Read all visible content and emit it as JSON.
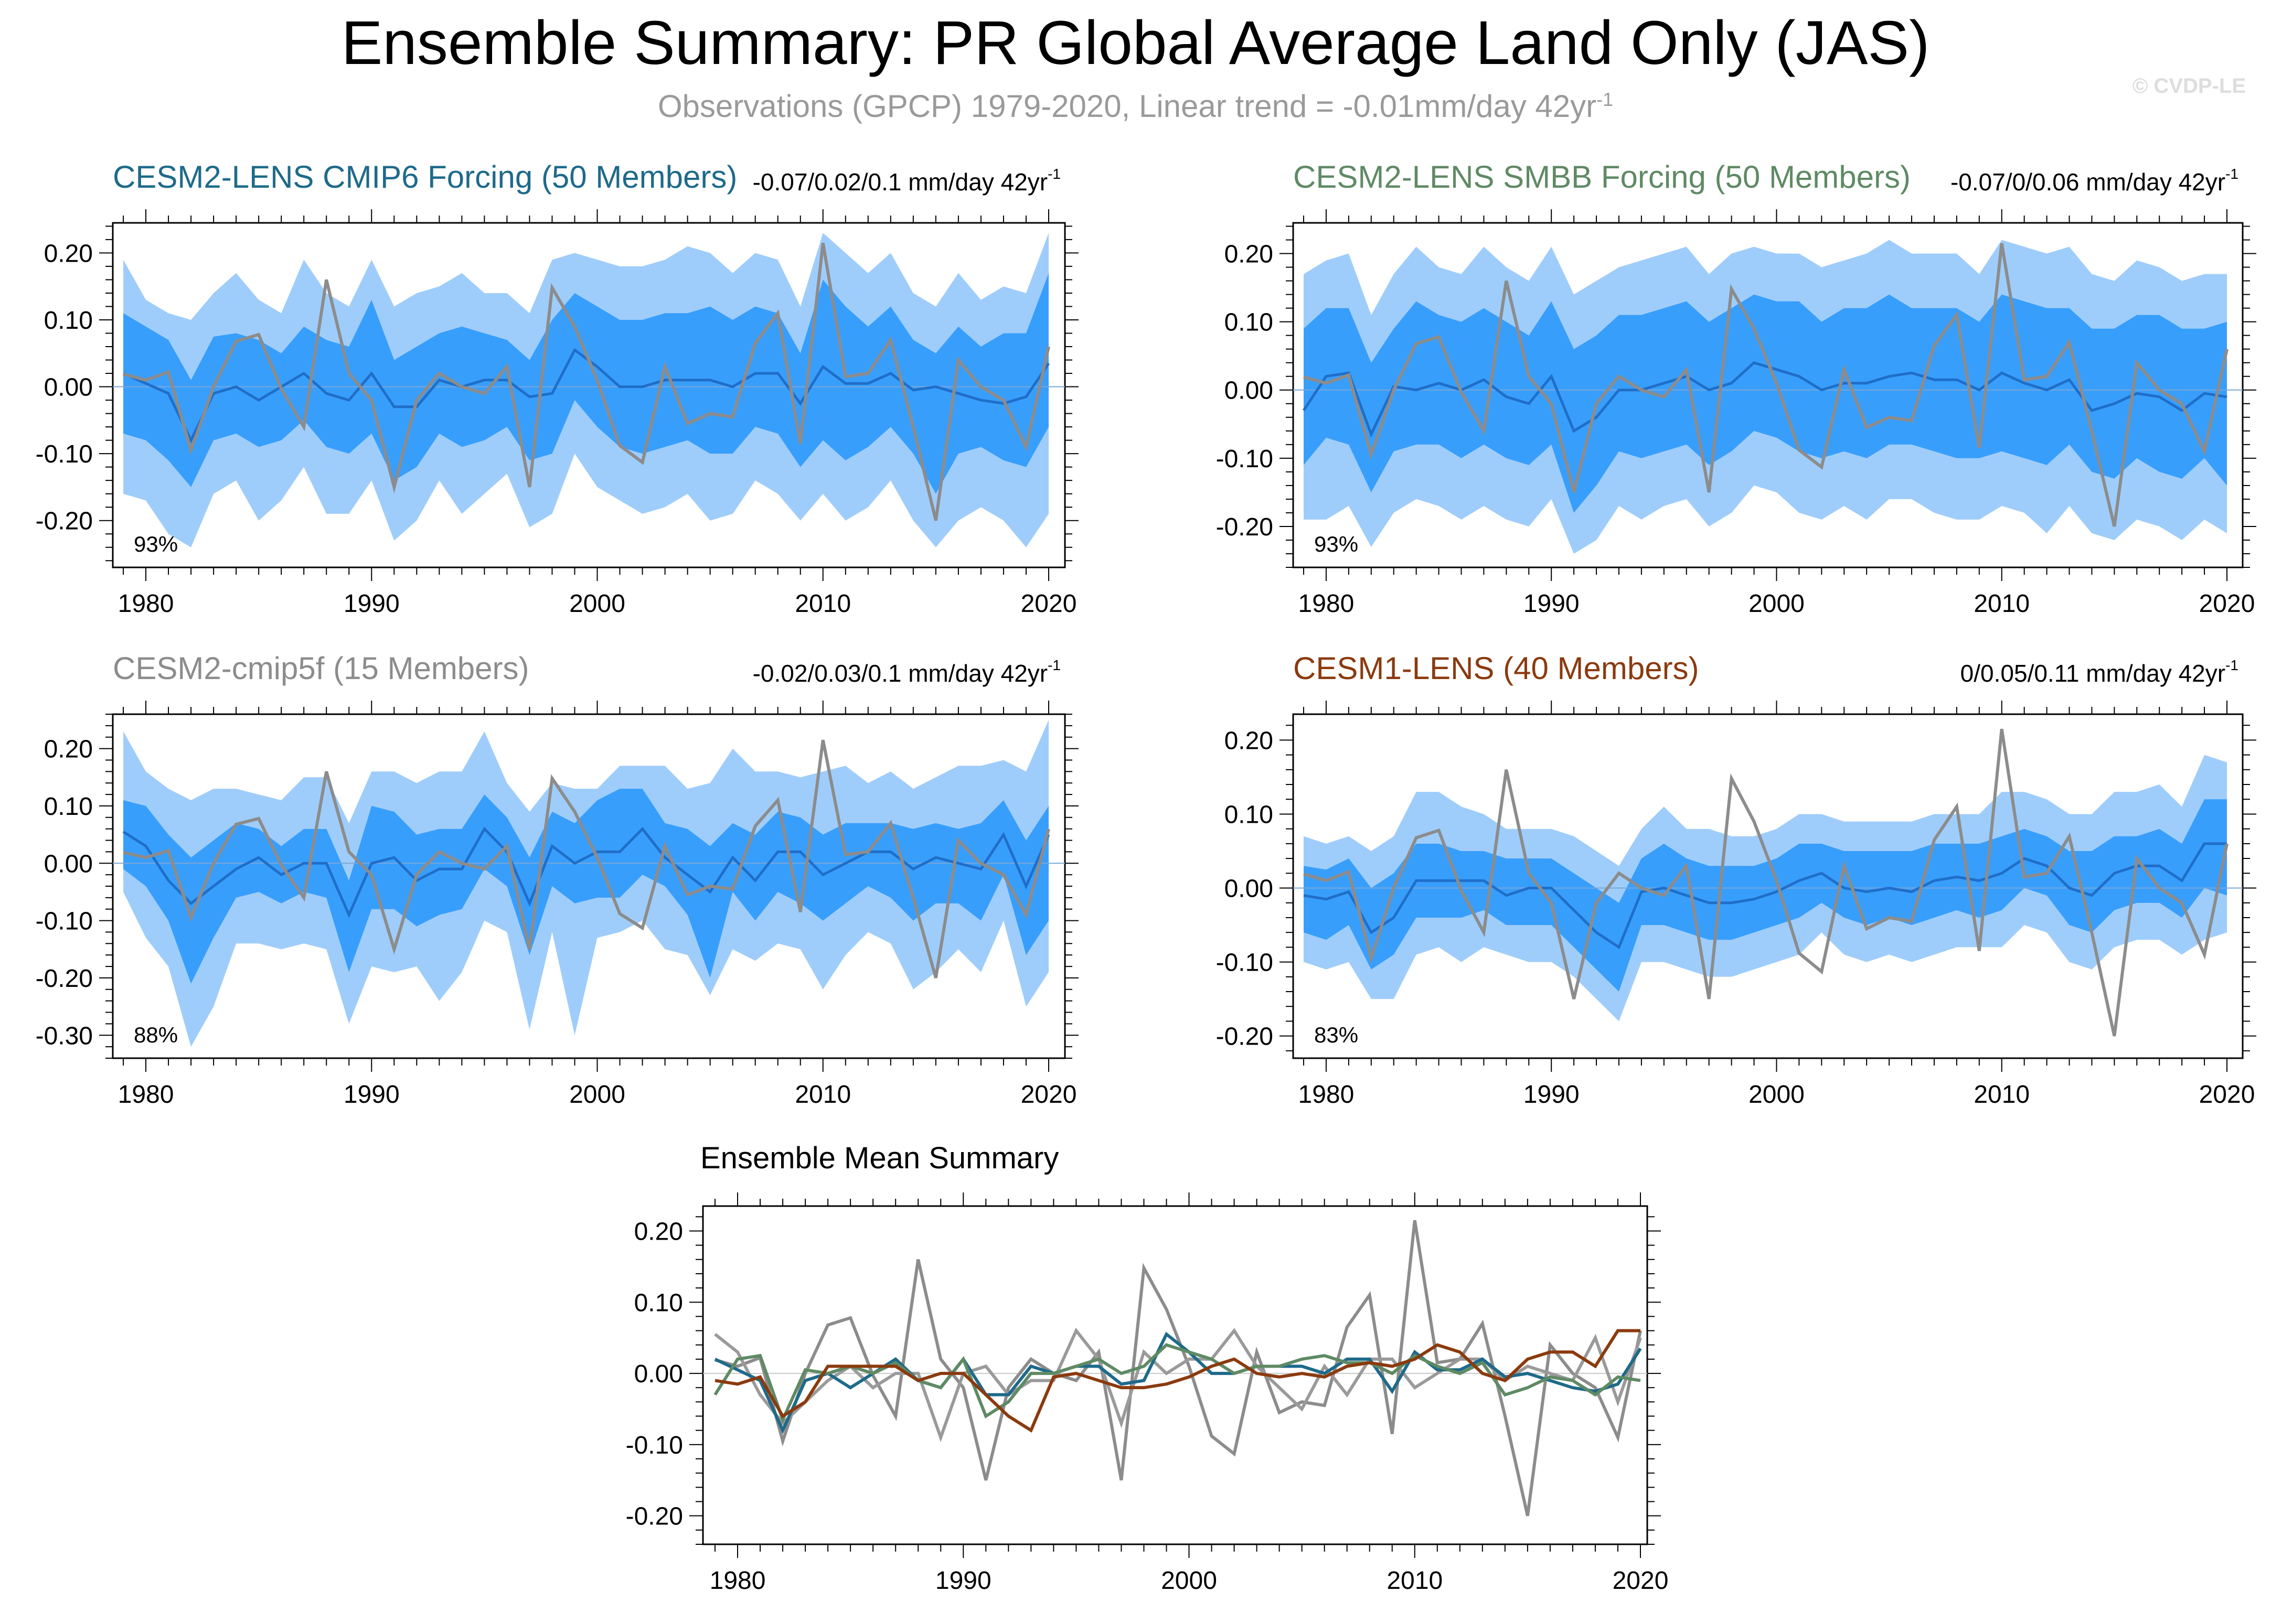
{
  "title": "Ensemble Summary: PR Global Average Land Only (JAS)",
  "subtitle": "Observations (GPCP) 1979-2020, Linear trend = -0.01mm/day 42yr",
  "subtitle_sup": "-1",
  "watermark": "© CVDP-LE",
  "years": [
    1979,
    1980,
    1981,
    1982,
    1983,
    1984,
    1985,
    1986,
    1987,
    1988,
    1989,
    1990,
    1991,
    1992,
    1993,
    1994,
    1995,
    1996,
    1997,
    1998,
    1999,
    2000,
    2001,
    2002,
    2003,
    2004,
    2005,
    2006,
    2007,
    2008,
    2009,
    2010,
    2011,
    2012,
    2013,
    2014,
    2015,
    2016,
    2017,
    2018,
    2019,
    2020
  ],
  "observations": {
    "name": "GPCP",
    "color": "#8c8c8c",
    "values": [
      0.019,
      0.01,
      0.022,
      -0.095,
      0.0,
      0.068,
      0.078,
      -0.003,
      -0.06,
      0.16,
      0.02,
      -0.02,
      -0.15,
      -0.02,
      0.02,
      0.0,
      -0.01,
      0.03,
      -0.15,
      0.148,
      0.09,
      0.01,
      -0.088,
      -0.113,
      0.03,
      -0.055,
      -0.04,
      -0.045,
      0.065,
      0.11,
      -0.085,
      0.215,
      0.015,
      0.02,
      0.07,
      -0.06,
      -0.2,
      0.04,
      0.0,
      -0.02,
      -0.09,
      0.06
    ]
  },
  "chart_data": [
    {
      "type": "area",
      "title": "CESM2-LENS CMIP6 Forcing (50 Members)",
      "title_color": "#1e6a8a",
      "trend_label": "-0.07/0.02/0.1 mm/day 42yr",
      "trend_sup": "-1",
      "percent_label": "93%",
      "ylim": [
        -0.27,
        0.245
      ],
      "yticks": [
        -0.2,
        -0.1,
        0.0,
        0.1,
        0.2
      ],
      "ytick_labels": [
        "-0.20",
        "-0.10",
        "0.00",
        "0.10",
        "0.20"
      ],
      "xticks": [
        1980,
        1990,
        2000,
        2010,
        2020
      ],
      "mean": [
        0.02,
        0.005,
        -0.01,
        -0.08,
        -0.01,
        0.0,
        -0.02,
        0.0,
        0.02,
        -0.01,
        -0.02,
        0.02,
        -0.03,
        -0.03,
        0.01,
        0.0,
        0.01,
        0.01,
        -0.015,
        -0.01,
        0.055,
        0.03,
        0.0,
        0.0,
        0.01,
        0.01,
        0.01,
        0.0,
        0.02,
        0.02,
        -0.025,
        0.03,
        0.005,
        0.005,
        0.02,
        -0.005,
        0.0,
        -0.01,
        -0.02,
        -0.025,
        -0.015,
        0.035
      ],
      "inner_upper": [
        0.11,
        0.09,
        0.07,
        0.01,
        0.075,
        0.08,
        0.07,
        0.05,
        0.09,
        0.07,
        0.06,
        0.13,
        0.04,
        0.06,
        0.08,
        0.09,
        0.08,
        0.07,
        0.04,
        0.1,
        0.14,
        0.12,
        0.1,
        0.1,
        0.11,
        0.11,
        0.12,
        0.1,
        0.12,
        0.11,
        0.05,
        0.16,
        0.12,
        0.09,
        0.12,
        0.07,
        0.05,
        0.09,
        0.06,
        0.08,
        0.08,
        0.17
      ],
      "inner_lower": [
        -0.07,
        -0.08,
        -0.11,
        -0.15,
        -0.08,
        -0.07,
        -0.09,
        -0.08,
        -0.05,
        -0.09,
        -0.1,
        -0.07,
        -0.14,
        -0.12,
        -0.07,
        -0.09,
        -0.08,
        -0.06,
        -0.11,
        -0.1,
        -0.02,
        -0.06,
        -0.09,
        -0.1,
        -0.09,
        -0.08,
        -0.1,
        -0.1,
        -0.06,
        -0.07,
        -0.12,
        -0.08,
        -0.11,
        -0.09,
        -0.06,
        -0.1,
        -0.16,
        -0.1,
        -0.09,
        -0.11,
        -0.12,
        -0.06
      ],
      "outer_upper": [
        0.19,
        0.13,
        0.11,
        0.1,
        0.14,
        0.17,
        0.13,
        0.11,
        0.19,
        0.14,
        0.12,
        0.19,
        0.12,
        0.14,
        0.15,
        0.17,
        0.14,
        0.14,
        0.11,
        0.19,
        0.2,
        0.19,
        0.18,
        0.18,
        0.19,
        0.21,
        0.2,
        0.17,
        0.2,
        0.19,
        0.12,
        0.23,
        0.2,
        0.17,
        0.2,
        0.14,
        0.12,
        0.17,
        0.13,
        0.15,
        0.14,
        0.23
      ],
      "outer_lower": [
        -0.16,
        -0.17,
        -0.22,
        -0.24,
        -0.16,
        -0.14,
        -0.2,
        -0.17,
        -0.12,
        -0.19,
        -0.19,
        -0.14,
        -0.23,
        -0.2,
        -0.14,
        -0.19,
        -0.16,
        -0.13,
        -0.21,
        -0.19,
        -0.1,
        -0.15,
        -0.17,
        -0.19,
        -0.18,
        -0.16,
        -0.2,
        -0.19,
        -0.14,
        -0.16,
        -0.2,
        -0.16,
        -0.2,
        -0.18,
        -0.14,
        -0.2,
        -0.24,
        -0.2,
        -0.18,
        -0.2,
        -0.24,
        -0.19
      ]
    },
    {
      "type": "area",
      "title": "CESM2-LENS SMBB Forcing (50 Members)",
      "title_color": "#5f8a64",
      "trend_label": "-0.07/0/0.06 mm/day 42yr",
      "trend_sup": "-1",
      "percent_label": "93%",
      "ylim": [
        -0.26,
        0.245
      ],
      "yticks": [
        -0.2,
        -0.1,
        0.0,
        0.1,
        0.2
      ],
      "ytick_labels": [
        "-0.20",
        "-0.10",
        "0.00",
        "0.10",
        "0.20"
      ],
      "xticks": [
        1980,
        1990,
        2000,
        2010,
        2020
      ],
      "mean": [
        -0.03,
        0.02,
        0.025,
        -0.065,
        0.005,
        0.0,
        0.01,
        0.0,
        0.015,
        -0.01,
        -0.02,
        0.02,
        -0.06,
        -0.04,
        0.0,
        0.0,
        0.01,
        0.02,
        0.0,
        0.01,
        0.04,
        0.03,
        0.02,
        0.0,
        0.01,
        0.01,
        0.02,
        0.025,
        0.015,
        0.015,
        0.0,
        0.025,
        0.01,
        0.0,
        0.015,
        -0.03,
        -0.02,
        -0.005,
        -0.01,
        -0.03,
        -0.005,
        -0.01
      ],
      "inner_upper": [
        0.09,
        0.12,
        0.12,
        0.04,
        0.09,
        0.13,
        0.11,
        0.1,
        0.12,
        0.1,
        0.08,
        0.13,
        0.06,
        0.08,
        0.11,
        0.11,
        0.12,
        0.13,
        0.1,
        0.12,
        0.14,
        0.13,
        0.13,
        0.1,
        0.12,
        0.12,
        0.14,
        0.12,
        0.12,
        0.12,
        0.1,
        0.14,
        0.13,
        0.12,
        0.12,
        0.09,
        0.09,
        0.11,
        0.11,
        0.09,
        0.09,
        0.1
      ],
      "inner_lower": [
        -0.11,
        -0.07,
        -0.08,
        -0.15,
        -0.09,
        -0.08,
        -0.08,
        -0.1,
        -0.08,
        -0.1,
        -0.11,
        -0.08,
        -0.18,
        -0.14,
        -0.09,
        -0.1,
        -0.09,
        -0.08,
        -0.11,
        -0.09,
        -0.06,
        -0.07,
        -0.09,
        -0.1,
        -0.09,
        -0.1,
        -0.08,
        -0.08,
        -0.09,
        -0.1,
        -0.1,
        -0.09,
        -0.1,
        -0.11,
        -0.08,
        -0.12,
        -0.13,
        -0.1,
        -0.12,
        -0.13,
        -0.1,
        -0.14
      ],
      "outer_upper": [
        0.17,
        0.19,
        0.2,
        0.11,
        0.17,
        0.21,
        0.18,
        0.17,
        0.21,
        0.18,
        0.16,
        0.21,
        0.14,
        0.16,
        0.18,
        0.19,
        0.2,
        0.21,
        0.17,
        0.2,
        0.21,
        0.2,
        0.2,
        0.18,
        0.19,
        0.2,
        0.22,
        0.2,
        0.2,
        0.2,
        0.17,
        0.22,
        0.21,
        0.2,
        0.21,
        0.17,
        0.16,
        0.19,
        0.18,
        0.16,
        0.17,
        0.17
      ],
      "outer_lower": [
        -0.19,
        -0.19,
        -0.17,
        -0.23,
        -0.18,
        -0.16,
        -0.17,
        -0.19,
        -0.17,
        -0.19,
        -0.2,
        -0.16,
        -0.24,
        -0.22,
        -0.17,
        -0.19,
        -0.17,
        -0.16,
        -0.2,
        -0.18,
        -0.14,
        -0.15,
        -0.18,
        -0.19,
        -0.17,
        -0.19,
        -0.16,
        -0.16,
        -0.18,
        -0.19,
        -0.19,
        -0.17,
        -0.18,
        -0.21,
        -0.17,
        -0.21,
        -0.22,
        -0.19,
        -0.2,
        -0.22,
        -0.19,
        -0.21
      ]
    },
    {
      "type": "area",
      "title": "CESM2-cmip5f (15 Members)",
      "title_color": "#8c8c8c",
      "trend_label": "-0.02/0.03/0.1 mm/day 42yr",
      "trend_sup": "-1",
      "percent_label": "88%",
      "ylim": [
        -0.34,
        0.26
      ],
      "yticks": [
        -0.3,
        -0.2,
        -0.1,
        0.0,
        0.1,
        0.2
      ],
      "ytick_labels": [
        "-0.30",
        "-0.20",
        "-0.10",
        "0.00",
        "0.10",
        "0.20"
      ],
      "xticks": [
        1980,
        1990,
        2000,
        2010,
        2020
      ],
      "mean": [
        0.055,
        0.03,
        -0.03,
        -0.07,
        -0.04,
        -0.01,
        0.01,
        -0.02,
        0.0,
        0.0,
        -0.09,
        0.0,
        0.01,
        -0.03,
        -0.01,
        -0.01,
        0.06,
        0.02,
        -0.07,
        0.03,
        0.0,
        0.02,
        0.02,
        0.06,
        0.01,
        -0.02,
        -0.05,
        0.01,
        -0.03,
        0.02,
        0.02,
        -0.02,
        0.0,
        0.02,
        0.02,
        -0.01,
        0.01,
        0.0,
        -0.01,
        0.05,
        -0.04,
        0.05
      ],
      "inner_upper": [
        0.11,
        0.1,
        0.05,
        0.01,
        0.04,
        0.07,
        0.06,
        0.03,
        0.06,
        0.06,
        -0.03,
        0.1,
        0.09,
        0.05,
        0.06,
        0.06,
        0.12,
        0.08,
        0.01,
        0.09,
        0.07,
        0.11,
        0.13,
        0.13,
        0.07,
        0.06,
        0.03,
        0.07,
        0.05,
        0.09,
        0.08,
        0.05,
        0.07,
        0.07,
        0.07,
        0.06,
        0.07,
        0.06,
        0.07,
        0.11,
        0.04,
        0.1
      ],
      "inner_lower": [
        -0.01,
        -0.04,
        -0.1,
        -0.21,
        -0.13,
        -0.06,
        -0.05,
        -0.07,
        -0.05,
        -0.06,
        -0.19,
        -0.08,
        -0.08,
        -0.11,
        -0.09,
        -0.08,
        -0.01,
        -0.04,
        -0.16,
        -0.04,
        -0.07,
        -0.06,
        -0.06,
        -0.02,
        -0.04,
        -0.09,
        -0.2,
        -0.05,
        -0.1,
        -0.05,
        -0.07,
        -0.1,
        -0.07,
        -0.04,
        -0.06,
        -0.1,
        -0.07,
        -0.07,
        -0.1,
        -0.02,
        -0.16,
        -0.1
      ],
      "outer_upper": [
        0.23,
        0.16,
        0.13,
        0.11,
        0.13,
        0.13,
        0.12,
        0.11,
        0.15,
        0.15,
        0.07,
        0.16,
        0.16,
        0.14,
        0.16,
        0.16,
        0.23,
        0.14,
        0.09,
        0.14,
        0.13,
        0.13,
        0.17,
        0.17,
        0.17,
        0.13,
        0.14,
        0.2,
        0.16,
        0.16,
        0.15,
        0.16,
        0.17,
        0.14,
        0.16,
        0.13,
        0.15,
        0.17,
        0.17,
        0.18,
        0.16,
        0.25
      ],
      "outer_lower": [
        -0.05,
        -0.13,
        -0.18,
        -0.32,
        -0.25,
        -0.14,
        -0.14,
        -0.15,
        -0.14,
        -0.15,
        -0.28,
        -0.18,
        -0.19,
        -0.18,
        -0.24,
        -0.19,
        -0.1,
        -0.12,
        -0.29,
        -0.12,
        -0.3,
        -0.13,
        -0.12,
        -0.1,
        -0.15,
        -0.16,
        -0.23,
        -0.15,
        -0.17,
        -0.14,
        -0.15,
        -0.22,
        -0.16,
        -0.12,
        -0.14,
        -0.22,
        -0.19,
        -0.15,
        -0.19,
        -0.1,
        -0.25,
        -0.19
      ]
    },
    {
      "type": "area",
      "title": "CESM1-LENS (40 Members)",
      "title_color": "#8b3a0e",
      "trend_label": "0/0.05/0.11 mm/day 42yr",
      "trend_sup": "-1",
      "percent_label": "83%",
      "ylim": [
        -0.23,
        0.235
      ],
      "yticks": [
        -0.2,
        -0.1,
        0.0,
        0.1,
        0.2
      ],
      "ytick_labels": [
        "-0.20",
        "-0.10",
        "0.00",
        "0.10",
        "0.20"
      ],
      "xticks": [
        1980,
        1990,
        2000,
        2010,
        2020
      ],
      "mean": [
        -0.01,
        -0.015,
        -0.005,
        -0.06,
        -0.04,
        0.01,
        0.01,
        0.01,
        0.01,
        -0.01,
        0.0,
        0.0,
        -0.03,
        -0.06,
        -0.08,
        -0.005,
        0.0,
        -0.01,
        -0.02,
        -0.02,
        -0.015,
        -0.005,
        0.01,
        0.02,
        0.0,
        -0.005,
        0.0,
        -0.005,
        0.01,
        0.015,
        0.01,
        0.02,
        0.04,
        0.03,
        0.0,
        -0.01,
        0.02,
        0.03,
        0.03,
        0.01,
        0.06,
        0.06
      ],
      "inner_upper": [
        0.03,
        0.025,
        0.04,
        0.0,
        0.02,
        0.06,
        0.06,
        0.05,
        0.05,
        0.04,
        0.04,
        0.04,
        0.02,
        0.0,
        -0.02,
        0.04,
        0.06,
        0.04,
        0.03,
        0.03,
        0.03,
        0.04,
        0.06,
        0.06,
        0.05,
        0.05,
        0.05,
        0.05,
        0.06,
        0.06,
        0.06,
        0.07,
        0.08,
        0.07,
        0.05,
        0.05,
        0.07,
        0.07,
        0.08,
        0.06,
        0.12,
        0.12
      ],
      "inner_lower": [
        -0.06,
        -0.07,
        -0.05,
        -0.11,
        -0.09,
        -0.04,
        -0.04,
        -0.04,
        -0.03,
        -0.05,
        -0.05,
        -0.05,
        -0.08,
        -0.11,
        -0.14,
        -0.05,
        -0.05,
        -0.06,
        -0.07,
        -0.07,
        -0.06,
        -0.05,
        -0.04,
        -0.02,
        -0.04,
        -0.05,
        -0.04,
        -0.05,
        -0.04,
        -0.03,
        -0.04,
        -0.03,
        0.0,
        -0.01,
        -0.05,
        -0.06,
        -0.03,
        -0.02,
        -0.02,
        -0.04,
        0.0,
        -0.01
      ],
      "outer_upper": [
        0.07,
        0.06,
        0.07,
        0.05,
        0.07,
        0.13,
        0.13,
        0.11,
        0.1,
        0.08,
        0.08,
        0.08,
        0.07,
        0.05,
        0.03,
        0.08,
        0.11,
        0.08,
        0.08,
        0.07,
        0.07,
        0.08,
        0.1,
        0.1,
        0.09,
        0.09,
        0.09,
        0.09,
        0.1,
        0.1,
        0.1,
        0.13,
        0.13,
        0.12,
        0.1,
        0.1,
        0.13,
        0.13,
        0.14,
        0.11,
        0.18,
        0.17
      ],
      "outer_lower": [
        -0.1,
        -0.11,
        -0.1,
        -0.15,
        -0.15,
        -0.09,
        -0.08,
        -0.1,
        -0.08,
        -0.09,
        -0.1,
        -0.1,
        -0.12,
        -0.15,
        -0.18,
        -0.1,
        -0.1,
        -0.11,
        -0.12,
        -0.12,
        -0.11,
        -0.1,
        -0.09,
        -0.06,
        -0.09,
        -0.1,
        -0.09,
        -0.1,
        -0.09,
        -0.08,
        -0.08,
        -0.08,
        -0.05,
        -0.06,
        -0.1,
        -0.11,
        -0.08,
        -0.07,
        -0.07,
        -0.09,
        -0.07,
        -0.06
      ]
    },
    {
      "type": "line",
      "title": "Ensemble Mean Summary",
      "ylim": [
        -0.24,
        0.235
      ],
      "yticks": [
        -0.2,
        -0.1,
        0.0,
        0.1,
        0.2
      ],
      "ytick_labels": [
        "-0.20",
        "-0.10",
        "0.00",
        "0.10",
        "0.20"
      ],
      "xticks": [
        1980,
        1990,
        2000,
        2010,
        2020
      ],
      "series_colors": [
        "#9a9a9a",
        "#1e6a8a",
        "#5f8a64",
        "#8b3a0e"
      ]
    }
  ]
}
